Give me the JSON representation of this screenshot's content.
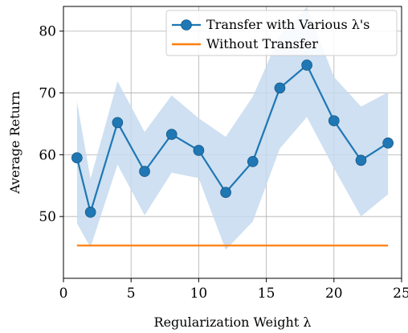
{
  "chart_data": {
    "type": "line",
    "xlabel": "Regularization Weight λ",
    "ylabel": "Average Return",
    "xlim": [
      0,
      25
    ],
    "ylim": [
      40,
      84
    ],
    "xticks": [
      0,
      5,
      10,
      15,
      20,
      25
    ],
    "yticks": [
      50,
      60,
      70,
      80
    ],
    "grid": true,
    "legend_position": "top-right",
    "series": [
      {
        "name": "Transfer with Various λ's",
        "color": "#1f77b4",
        "band_color": "#c6dbef",
        "marker": "circle",
        "x": [
          1,
          2,
          4,
          6,
          8,
          10,
          12,
          14,
          16,
          18,
          20,
          22,
          24
        ],
        "values": [
          59.5,
          50.7,
          65.2,
          57.3,
          63.3,
          60.7,
          53.9,
          58.9,
          70.8,
          74.5,
          65.5,
          59.1,
          61.9
        ],
        "band_upper": [
          68.6,
          56.1,
          71.9,
          63.7,
          69.6,
          65.9,
          62.9,
          69.4,
          79.4,
          83.9,
          72.6,
          67.8,
          70.1
        ],
        "band_lower": [
          48.9,
          45.0,
          58.4,
          50.2,
          57.1,
          56.2,
          44.6,
          49.2,
          61.0,
          66.1,
          57.8,
          50.0,
          53.6
        ]
      },
      {
        "name": "Without Transfer",
        "color": "#ff7f0e",
        "x": [
          1,
          24
        ],
        "values": [
          45.3,
          45.3
        ]
      }
    ]
  }
}
